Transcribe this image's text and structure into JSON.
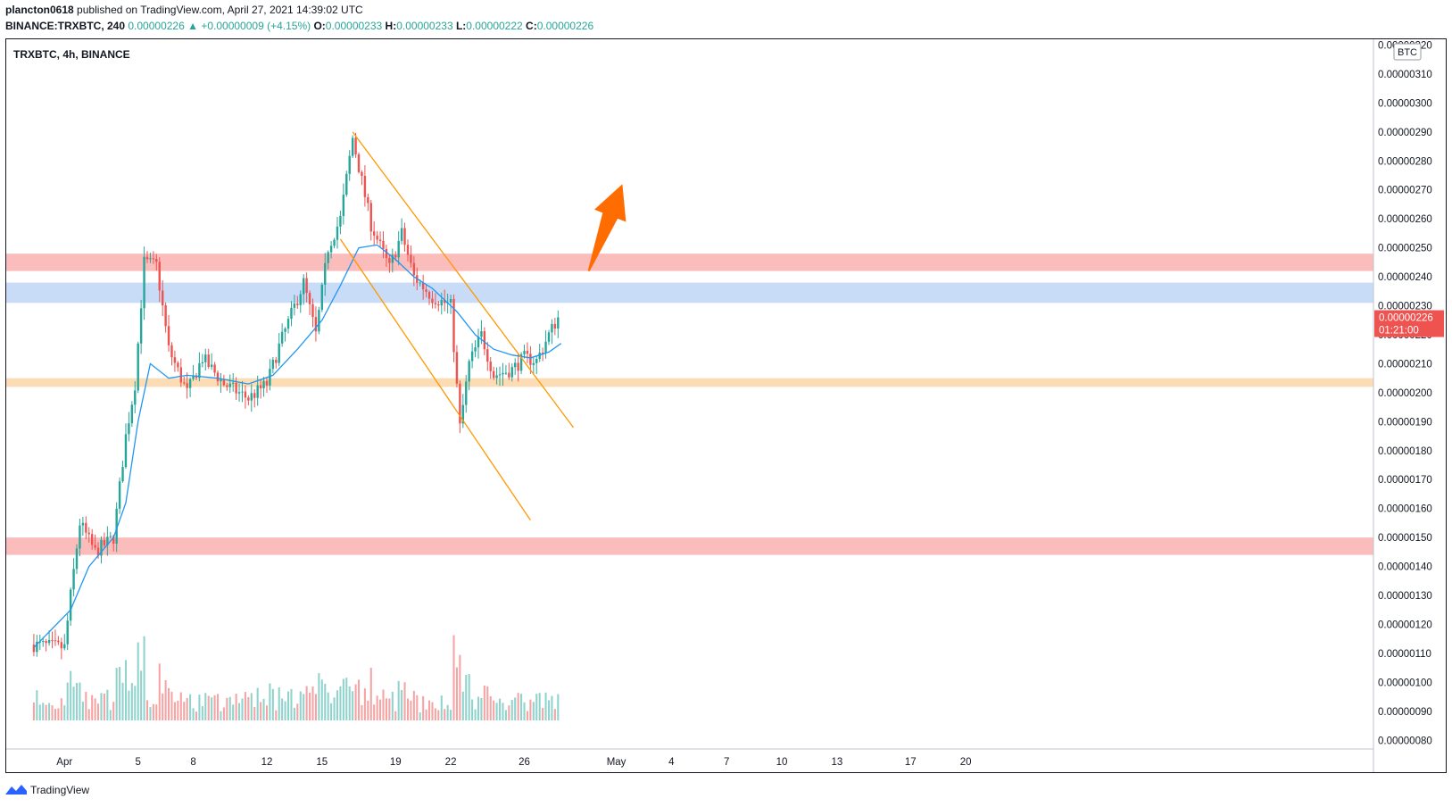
{
  "header": {
    "author": "plancton0618",
    "published": "published on TradingView.com, April 27, 2021 14:39:02 UTC",
    "symbol_line": "BINANCE:TRXBTC, 240",
    "last": "0.00000226",
    "change": "+0.00000009 (+4.15%)",
    "open_label": "O:",
    "open": "0.00000233",
    "high_label": "H:",
    "high": "0.00000233",
    "low_label": "L:",
    "low": "0.00000222",
    "close_label": "C:",
    "close": "0.00000226"
  },
  "legend": {
    "title": "TRXBTC, 4h, BINANCE"
  },
  "axis": {
    "currency": "BTC"
  },
  "current_price": {
    "price": "0.00000226",
    "countdown": "01:21:00"
  },
  "footer": {
    "brand": "TradingView"
  },
  "colors": {
    "up": "#26a69a",
    "down": "#ef5350",
    "vol_up": "#8fd3cc",
    "vol_down": "#f5a3a3",
    "ma": "#2196f3",
    "channel": "#ff9800",
    "arrow": "#ff6d00",
    "zone_red": "#fbbcbc",
    "zone_blue": "#c8dcf7",
    "zone_orange": "#fbdcb4",
    "price_tag": "#ef5350"
  },
  "chart_data": {
    "type": "candlestick",
    "symbol": "TRXBTC",
    "timeframe": "4h",
    "exchange": "BINANCE",
    "y_range": [
      7.7e-07,
      3.22e-06
    ],
    "y_ticks": [
      "0.00000320",
      "0.00000310",
      "0.00000300",
      "0.00000290",
      "0.00000280",
      "0.00000270",
      "0.00000260",
      "0.00000250",
      "0.00000240",
      "0.00000230",
      "0.00000220",
      "0.00000210",
      "0.00000200",
      "0.00000190",
      "0.00000180",
      "0.00000170",
      "0.00000160",
      "0.00000150",
      "0.00000140",
      "0.00000130",
      "0.00000120",
      "0.00000110",
      "0.00000100",
      "0.00000090",
      "0.00000080"
    ],
    "x_range_bars": [
      -9,
      437
    ],
    "x_ticks": [
      {
        "label": "Apr",
        "bar": 10
      },
      {
        "label": "5",
        "bar": 34
      },
      {
        "label": "8",
        "bar": 52
      },
      {
        "label": "12",
        "bar": 76
      },
      {
        "label": "15",
        "bar": 94
      },
      {
        "label": "19",
        "bar": 118
      },
      {
        "label": "22",
        "bar": 136
      },
      {
        "label": "26",
        "bar": 160
      },
      {
        "label": "May",
        "bar": 190
      },
      {
        "label": "4",
        "bar": 208
      },
      {
        "label": "7",
        "bar": 226
      },
      {
        "label": "10",
        "bar": 244
      },
      {
        "label": "13",
        "bar": 262
      },
      {
        "label": "17",
        "bar": 286
      },
      {
        "label": "20",
        "bar": 304
      }
    ],
    "ohlc_keypoints": [
      [
        0,
        1.13
      ],
      [
        10,
        1.12
      ],
      [
        12,
        1.3
      ],
      [
        15,
        1.55
      ],
      [
        20,
        1.45
      ],
      [
        26,
        1.5
      ],
      [
        30,
        1.85
      ],
      [
        33,
        2.03
      ],
      [
        36,
        2.45
      ],
      [
        40,
        2.44
      ],
      [
        44,
        2.15
      ],
      [
        50,
        2.0
      ],
      [
        55,
        2.12
      ],
      [
        62,
        2.03
      ],
      [
        70,
        1.98
      ],
      [
        76,
        2.03
      ],
      [
        80,
        2.16
      ],
      [
        88,
        2.38
      ],
      [
        92,
        2.2
      ],
      [
        96,
        2.5
      ],
      [
        100,
        2.6
      ],
      [
        104,
        2.88
      ],
      [
        110,
        2.58
      ],
      [
        116,
        2.43
      ],
      [
        120,
        2.55
      ],
      [
        124,
        2.4
      ],
      [
        130,
        2.33
      ],
      [
        136,
        2.3
      ],
      [
        139,
        1.88
      ],
      [
        142,
        2.1
      ],
      [
        146,
        2.2
      ],
      [
        150,
        2.06
      ],
      [
        156,
        2.08
      ],
      [
        160,
        2.12
      ],
      [
        164,
        2.11
      ],
      [
        168,
        2.2
      ],
      [
        171,
        2.26
      ]
    ],
    "moving_average": [
      [
        0,
        1.12
      ],
      [
        12,
        1.25
      ],
      [
        18,
        1.4
      ],
      [
        26,
        1.5
      ],
      [
        30,
        1.62
      ],
      [
        34,
        1.9
      ],
      [
        38,
        2.1
      ],
      [
        44,
        2.05
      ],
      [
        50,
        2.06
      ],
      [
        60,
        2.05
      ],
      [
        70,
        2.03
      ],
      [
        78,
        2.06
      ],
      [
        86,
        2.15
      ],
      [
        94,
        2.25
      ],
      [
        100,
        2.37
      ],
      [
        106,
        2.5
      ],
      [
        112,
        2.51
      ],
      [
        118,
        2.46
      ],
      [
        124,
        2.4
      ],
      [
        130,
        2.36
      ],
      [
        138,
        2.28
      ],
      [
        144,
        2.2
      ],
      [
        150,
        2.15
      ],
      [
        156,
        2.13
      ],
      [
        162,
        2.12
      ],
      [
        168,
        2.14
      ],
      [
        172,
        2.17
      ]
    ],
    "zones": [
      {
        "from": 2.42,
        "to": 2.48,
        "color": "red"
      },
      {
        "from": 2.31,
        "to": 2.38,
        "color": "blue"
      },
      {
        "from": 2.02,
        "to": 2.05,
        "color": "orange"
      },
      {
        "from": 1.44,
        "to": 1.5,
        "color": "red"
      }
    ],
    "channel": [
      {
        "from": [
          104,
          2.9
        ],
        "to": [
          176,
          1.88
        ]
      },
      {
        "from": [
          100,
          2.53
        ],
        "to": [
          162,
          1.56
        ]
      }
    ],
    "arrow": {
      "from": [
        181,
        2.42
      ],
      "to": [
        192,
        2.72
      ]
    },
    "price_unit_note": "values above are in units of 0.000001 BTC"
  }
}
